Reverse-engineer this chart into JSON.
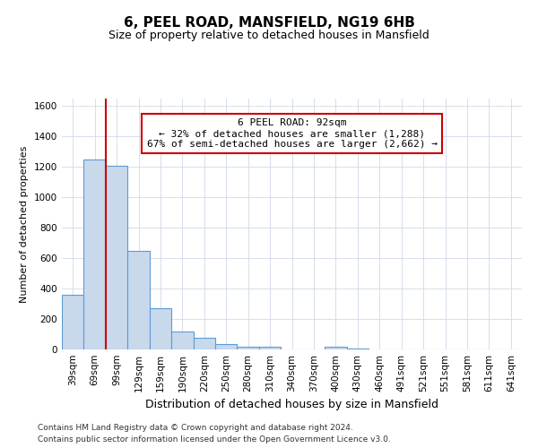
{
  "title1": "6, PEEL ROAD, MANSFIELD, NG19 6HB",
  "title2": "Size of property relative to detached houses in Mansfield",
  "xlabel": "Distribution of detached houses by size in Mansfield",
  "ylabel": "Number of detached properties",
  "footer1": "Contains HM Land Registry data © Crown copyright and database right 2024.",
  "footer2": "Contains public sector information licensed under the Open Government Licence v3.0.",
  "bin_labels": [
    "39sqm",
    "69sqm",
    "99sqm",
    "129sqm",
    "159sqm",
    "190sqm",
    "220sqm",
    "250sqm",
    "280sqm",
    "310sqm",
    "340sqm",
    "370sqm",
    "400sqm",
    "430sqm",
    "460sqm",
    "491sqm",
    "521sqm",
    "551sqm",
    "581sqm",
    "611sqm",
    "641sqm"
  ],
  "values": [
    360,
    1250,
    1210,
    650,
    270,
    115,
    75,
    35,
    20,
    15,
    0,
    0,
    20,
    5,
    0,
    0,
    0,
    0,
    0,
    0,
    0
  ],
  "bar_color": "#c9d9ec",
  "bar_edge_color": "#5b9bd5",
  "vline_color": "#cc0000",
  "vline_pos": 2.0,
  "annotation_text": "6 PEEL ROAD: 92sqm\n← 32% of detached houses are smaller (1,288)\n67% of semi-detached houses are larger (2,662) →",
  "annotation_box_facecolor": "#ffffff",
  "annotation_box_edgecolor": "#cc0000",
  "ylim": [
    0,
    1650
  ],
  "yticks": [
    0,
    200,
    400,
    600,
    800,
    1000,
    1200,
    1400,
    1600
  ],
  "background_color": "#ffffff",
  "grid_color": "#d0d8e8",
  "title1_fontsize": 11,
  "title2_fontsize": 9,
  "ylabel_fontsize": 8,
  "xlabel_fontsize": 9,
  "tick_fontsize": 7.5,
  "footer_fontsize": 6.5
}
